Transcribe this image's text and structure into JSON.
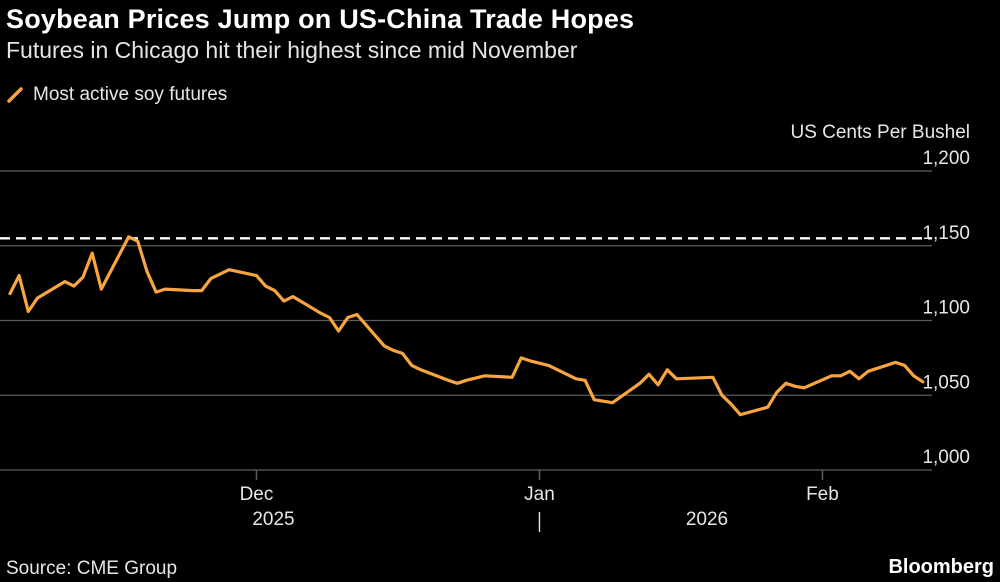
{
  "title": "Soybean Prices Jump on US-China Trade Hopes",
  "subtitle": "Futures in Chicago hit their highest since mid November",
  "source": "Source: CME Group",
  "brand": "Bloomberg",
  "colors": {
    "background": "#000000",
    "line": "#f7a540",
    "gridline": "#5c5c5c",
    "reference_line": "#ffffff",
    "text": "#e6e6e6"
  },
  "chart_data": {
    "type": "line",
    "title": "Soybean Prices Jump on US-China Trade Hopes",
    "subtitle": "Futures in Chicago hit their highest since mid November",
    "xlabel": "",
    "ylabel": "US Cents Per Bushel",
    "ylim": [
      1000,
      1200
    ],
    "yticks": [
      1000,
      1050,
      1100,
      1150,
      1200
    ],
    "ytick_labels": [
      "1,000",
      "1,050",
      "1,100",
      "1,150",
      "1,200"
    ],
    "xlim": [
      "2025-11-04",
      "2026-02-13"
    ],
    "xticks": [
      {
        "date": "2025-12-01",
        "label": "Dec"
      },
      {
        "date": "2026-01-01",
        "label": "Jan"
      },
      {
        "date": "2026-02-01",
        "label": "Feb"
      }
    ],
    "year_labels": [
      "2025",
      "2026"
    ],
    "grid": true,
    "legend_position": "top-left",
    "reference_line": {
      "y": 1155,
      "style": "dashed"
    },
    "series": [
      {
        "name": "Most active soy futures",
        "x": [
          "2025-11-04",
          "2025-11-05",
          "2025-11-06",
          "2025-11-07",
          "2025-11-10",
          "2025-11-11",
          "2025-11-12",
          "2025-11-13",
          "2025-11-14",
          "2025-11-17",
          "2025-11-18",
          "2025-11-19",
          "2025-11-20",
          "2025-11-21",
          "2025-11-24",
          "2025-11-25",
          "2025-11-26",
          "2025-11-28",
          "2025-12-01",
          "2025-12-02",
          "2025-12-03",
          "2025-12-04",
          "2025-12-05",
          "2025-12-08",
          "2025-12-09",
          "2025-12-10",
          "2025-12-11",
          "2025-12-12",
          "2025-12-15",
          "2025-12-16",
          "2025-12-17",
          "2025-12-18",
          "2025-12-19",
          "2025-12-22",
          "2025-12-23",
          "2025-12-24",
          "2025-12-26",
          "2025-12-29",
          "2025-12-30",
          "2025-12-31",
          "2026-01-02",
          "2026-01-05",
          "2026-01-06",
          "2026-01-07",
          "2026-01-08",
          "2026-01-09",
          "2026-01-12",
          "2026-01-13",
          "2026-01-14",
          "2026-01-15",
          "2026-01-16",
          "2026-01-20",
          "2026-01-21",
          "2026-01-22",
          "2026-01-23",
          "2026-01-26",
          "2026-01-27",
          "2026-01-28",
          "2026-01-29",
          "2026-01-30",
          "2026-02-02",
          "2026-02-03",
          "2026-02-04",
          "2026-02-05",
          "2026-02-06",
          "2026-02-09",
          "2026-02-10",
          "2026-02-11",
          "2026-02-12"
        ],
        "y": [
          1118,
          1130,
          1106,
          1115,
          1126,
          1123,
          1129,
          1145,
          1121,
          1156,
          1153,
          1133,
          1119,
          1121,
          1120,
          1120,
          1128,
          1134,
          1130,
          1123,
          1120,
          1113,
          1116,
          1105,
          1102,
          1093,
          1102,
          1104,
          1083,
          1080,
          1078,
          1070,
          1067,
          1060,
          1058,
          1060,
          1063,
          1062,
          1075,
          1073,
          1070,
          1061,
          1060,
          1047,
          1046,
          1045,
          1058,
          1064,
          1057,
          1067,
          1061,
          1062,
          1050,
          1044,
          1037,
          1042,
          1052,
          1058,
          1056,
          1055,
          1063,
          1063,
          1066,
          1061,
          1066,
          1072,
          1070,
          1063,
          1059
        ]
      }
    ]
  }
}
